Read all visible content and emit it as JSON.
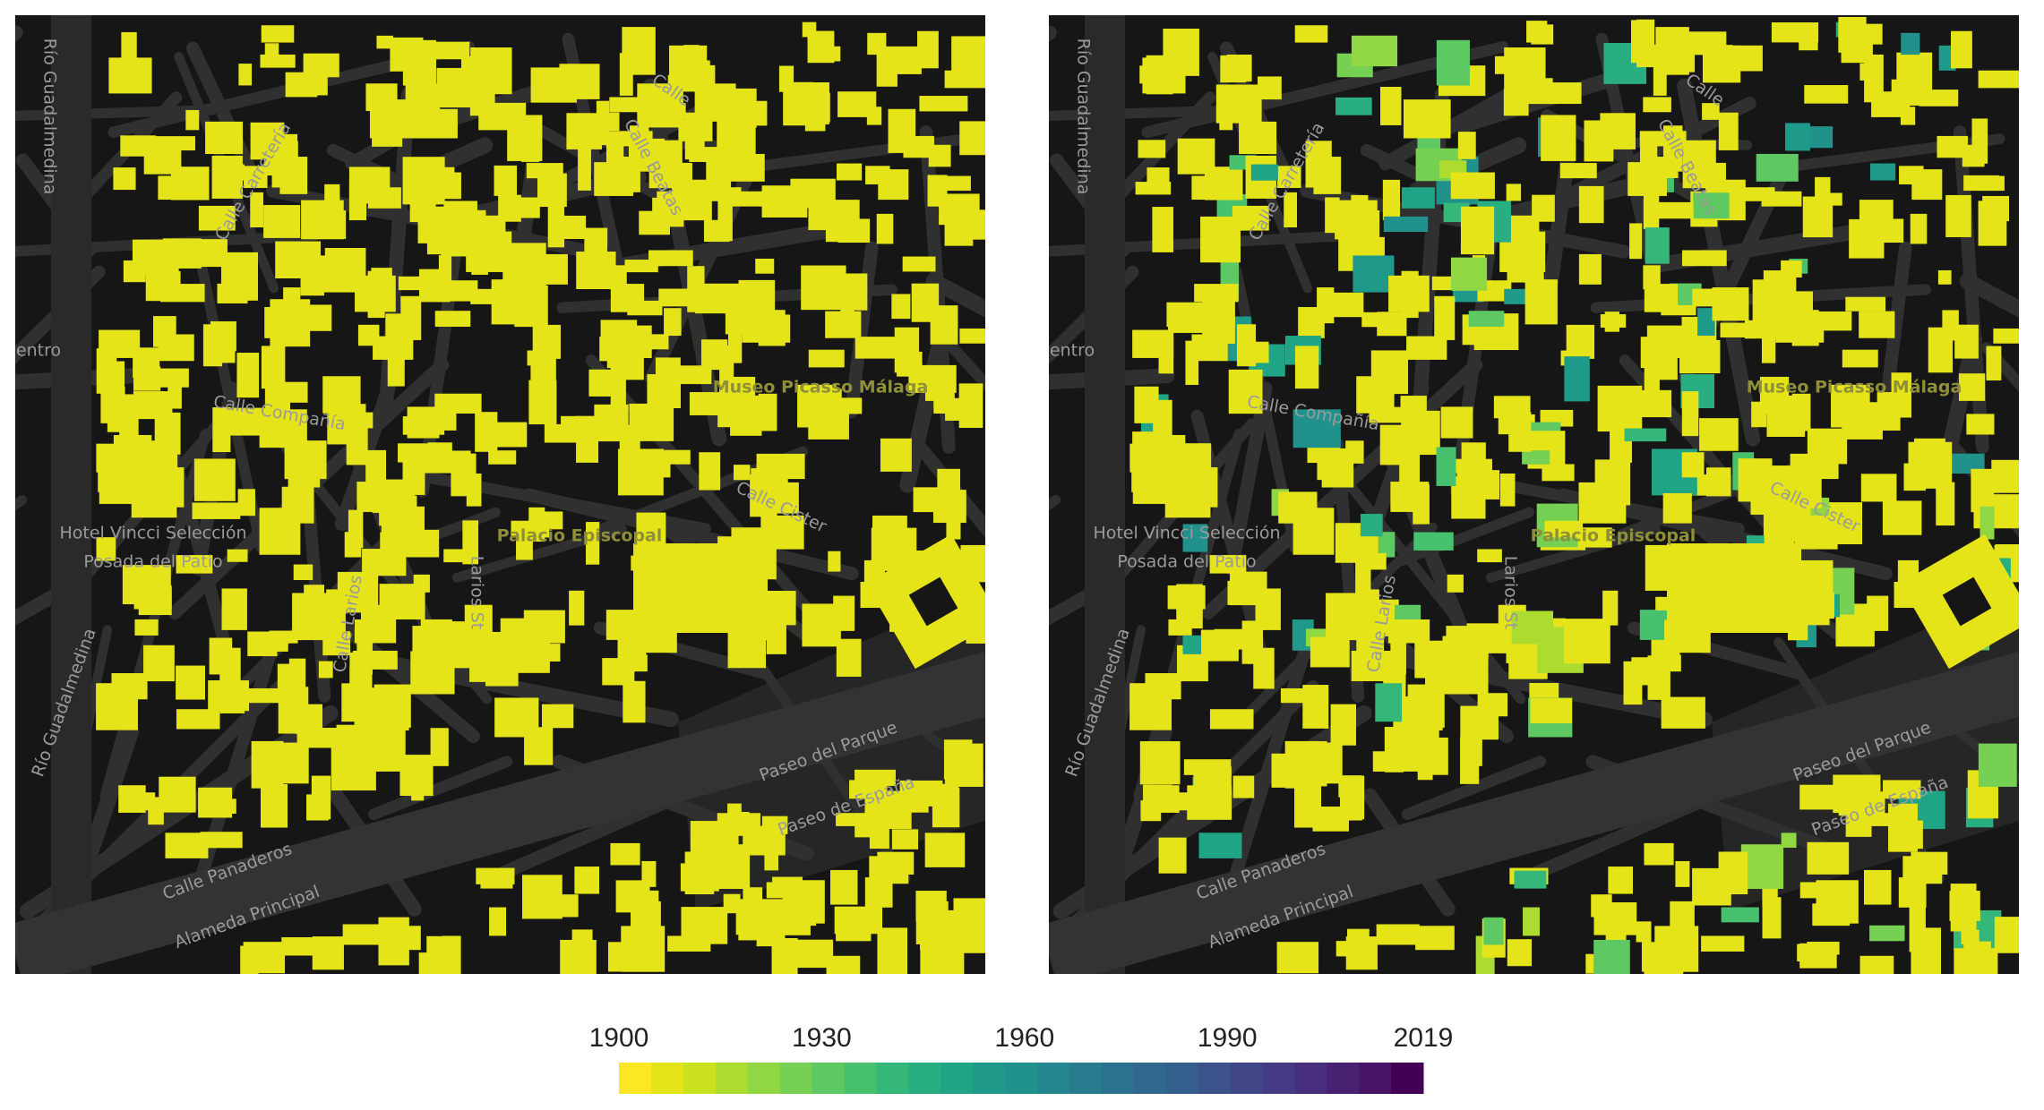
{
  "maps": [
    {
      "labels": [
        "Río Guadalmedina",
        "entro",
        "Calle",
        "Calle Beatas",
        "Museo Picasso Málaga",
        "Calle Compañía",
        "Hotel Vincci Selección",
        "Posada del Patio",
        "Palacio Episcopal",
        "Calle Cister",
        "Larios St",
        "Calle Larios",
        "Río Guadalmedina",
        "Paseo del Parque",
        "Paseo de España",
        "Calle Panaderos",
        "Alameda Principal",
        "Calle Carretería"
      ]
    },
    {
      "labels": [
        "Río Guadalmedina",
        "entro",
        "Calle",
        "Calle Beatas",
        "Museo Picasso Málaga",
        "Calle Compañía",
        "Hotel Vincci Selección",
        "Posada del Patio",
        "Palacio Episcopal",
        "Calle Cister",
        "Larios St",
        "Calle Larios",
        "Río Guadalmedina",
        "Paseo del Parque",
        "Paseo de España",
        "Calle Panaderos",
        "Alameda Principal",
        "Calle Carretería"
      ]
    }
  ],
  "colorbar": {
    "lim": [
      1900,
      2019
    ],
    "ticks": [
      1900,
      1930,
      1960,
      1990,
      2019
    ],
    "colors": [
      "#fde725",
      "#e5e419",
      "#cae11f",
      "#addc30",
      "#90d743",
      "#75d054",
      "#5ec962",
      "#48c16e",
      "#35b779",
      "#28ae80",
      "#20a486",
      "#1f9a8a",
      "#21918c",
      "#24868e",
      "#287c8e",
      "#2c728e",
      "#31688e",
      "#355f8d",
      "#3b528b",
      "#404688",
      "#443b84",
      "#472f7d",
      "#482173",
      "#481467",
      "#440154"
    ]
  }
}
